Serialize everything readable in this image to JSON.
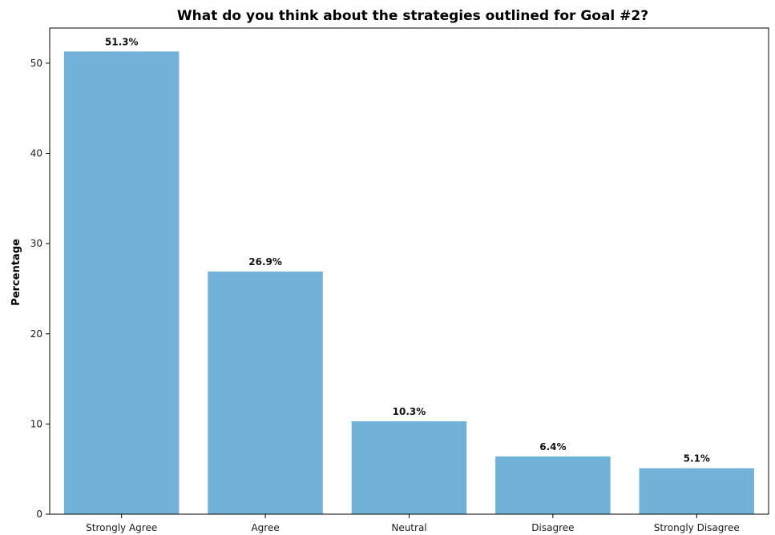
{
  "chart_data": {
    "type": "bar",
    "title": "What do you think about the strategies outlined for Goal #2?",
    "xlabel": "",
    "ylabel": "Percentage",
    "categories": [
      "Strongly Agree",
      "Agree",
      "Neutral",
      "Disagree",
      "Strongly Disagree"
    ],
    "values": [
      51.3,
      26.9,
      10.3,
      6.4,
      5.1
    ],
    "data_labels": [
      "51.3%",
      "26.9%",
      "10.3%",
      "6.4%",
      "5.1%"
    ],
    "y_ticks": [
      0,
      10,
      20,
      30,
      40,
      50
    ],
    "y_tick_labels": [
      "0",
      "10",
      "20",
      "30",
      "40",
      "50"
    ],
    "ylim": [
      0,
      53.9
    ],
    "grid": false,
    "legend": "none",
    "bar_color": "#6baed6"
  }
}
